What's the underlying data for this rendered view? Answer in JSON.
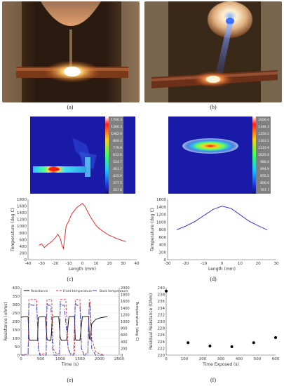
{
  "captions": {
    "a": "(a)",
    "b": "(b)",
    "c": "(c)",
    "d": "(d)",
    "e": "(e)",
    "f": "(f)"
  },
  "thermal_c_scale": [
    "1700.3",
    "1300.3",
    "1062.9",
    "869.2",
    "779.9",
    "612.6",
    "524.7",
    "461.7",
    "415.0",
    "377.5",
    "357.6"
  ],
  "thermal_d_scale": [
    "1600.0",
    "1344.3",
    "1250.2",
    "1163.1",
    "1110.9",
    "1025.0",
    "980.4",
    "894.9",
    "855.5",
    "800.0",
    "767.7"
  ],
  "chart_data": [
    {
      "id": "c",
      "type": "line",
      "xlabel": "Length (mm)",
      "ylabel": "Temperature (deg C)",
      "xlim": [
        -40,
        40
      ],
      "ylim": [
        0,
        1800
      ],
      "xticks": [
        -40,
        -30,
        -20,
        -10,
        0,
        10,
        20,
        30,
        40
      ],
      "yticks": [
        0,
        200,
        400,
        600,
        800,
        1000,
        1200,
        1400,
        1600,
        1800
      ],
      "color": "#e02020",
      "x": [
        -32,
        -30,
        -28,
        -26,
        -24,
        -22,
        -20,
        -18,
        -16,
        -15,
        -14,
        -13,
        -12,
        -10,
        -8,
        -6,
        -4,
        -2,
        0,
        2,
        4,
        6,
        8,
        10,
        12,
        14,
        16,
        18,
        20,
        22,
        24,
        26,
        28,
        30,
        32
      ],
      "y": [
        430,
        470,
        360,
        440,
        500,
        560,
        650,
        760,
        600,
        420,
        330,
        650,
        1000,
        1150,
        1350,
        1460,
        1560,
        1620,
        1680,
        1580,
        1420,
        1270,
        1150,
        1020,
        940,
        880,
        820,
        770,
        720,
        690,
        650,
        620,
        590,
        560,
        540
      ]
    },
    {
      "id": "d",
      "type": "line",
      "xlabel": "Length (mm)",
      "ylabel": "Temperature (deg C)",
      "xlim": [
        -30,
        30
      ],
      "ylim": [
        0,
        1600
      ],
      "xticks": [
        -30,
        -20,
        -10,
        0,
        10,
        20,
        30
      ],
      "yticks": [
        0,
        200,
        400,
        600,
        800,
        1000,
        1200,
        1400,
        1600
      ],
      "color": "#2020d0",
      "x": [
        -25,
        -20,
        -15,
        -10,
        -5,
        0,
        5,
        10,
        15,
        20,
        25
      ],
      "y": [
        790,
        890,
        1010,
        1170,
        1330,
        1420,
        1360,
        1190,
        1020,
        900,
        790
      ]
    },
    {
      "id": "e",
      "type": "line",
      "xlabel": "Time (s)",
      "ylabel": "Resistance (ohms)",
      "ylabel_right": "Temperature (deg C)",
      "xlim": [
        0,
        2500
      ],
      "ylim": [
        0,
        400
      ],
      "ylim_right": [
        0,
        2000
      ],
      "xticks": [
        0,
        500,
        1000,
        1500,
        2000,
        2500
      ],
      "yticks": [
        0,
        50,
        100,
        150,
        200,
        250,
        300,
        350,
        400
      ],
      "yticks_right": [
        0,
        200,
        400,
        600,
        800,
        1000,
        1200,
        1400,
        1600,
        1800,
        2000
      ],
      "legend": [
        "Resistance",
        "Front temperature",
        "Back temperature"
      ],
      "series": [
        {
          "name": "Resistance",
          "color": "#000000",
          "dash": "",
          "x": [
            0,
            100,
            180,
            200,
            220,
            300,
            380,
            420,
            440,
            460,
            500,
            560,
            620,
            660,
            690,
            720,
            760,
            800,
            880,
            960,
            1000,
            1030,
            1060,
            1100,
            1160,
            1220,
            1300,
            1360,
            1380,
            1400,
            1440,
            1500,
            1560,
            1620,
            1680,
            1720,
            1740,
            1760,
            1800,
            1900,
            2000,
            2100,
            2200
          ],
          "y": [
            225,
            228,
            228,
            100,
            88,
            88,
            88,
            88,
            220,
            225,
            228,
            228,
            228,
            95,
            88,
            88,
            88,
            225,
            228,
            228,
            100,
            88,
            88,
            88,
            88,
            228,
            228,
            230,
            100,
            88,
            88,
            88,
            228,
            228,
            230,
            230,
            100,
            92,
            185,
            212,
            220,
            225,
            228
          ]
        },
        {
          "name": "Front temperature",
          "color": "#e03030",
          "dash": "3,2",
          "x": [
            0,
            100,
            180,
            200,
            220,
            300,
            380,
            400,
            440,
            480,
            520,
            560,
            640,
            660,
            690,
            720,
            760,
            780,
            820,
            900,
            980,
            1000,
            1030,
            1060,
            1100,
            1140,
            1200,
            1260,
            1340,
            1360,
            1380,
            1420,
            1460,
            1500,
            1540,
            1600,
            1700,
            1740,
            1760,
            1800,
            1900,
            2000,
            2100
          ],
          "y": [
            0,
            20,
            40,
            1650,
            1650,
            1650,
            1650,
            1650,
            200,
            40,
            20,
            40,
            40,
            1650,
            1650,
            1650,
            1650,
            1650,
            200,
            40,
            40,
            1650,
            1650,
            1650,
            1650,
            1650,
            200,
            40,
            40,
            40,
            1650,
            1650,
            1650,
            1650,
            200,
            40,
            40,
            1650,
            1600,
            500,
            100,
            40,
            20
          ]
        },
        {
          "name": "Back temperature",
          "color": "#3040c0",
          "dash": "6,2,1,2",
          "x": [
            0,
            180,
            200,
            220,
            300,
            400,
            440,
            480,
            560,
            640,
            660,
            690,
            760,
            800,
            840,
            900,
            980,
            1000,
            1030,
            1100,
            1200,
            1260,
            1340,
            1380,
            1420,
            1500,
            1540,
            1600,
            1700,
            1740,
            1760,
            1800,
            1900,
            2100
          ],
          "y": [
            0,
            0,
            1550,
            1500,
            1480,
            1480,
            200,
            0,
            0,
            0,
            1550,
            1480,
            1480,
            200,
            0,
            0,
            0,
            1550,
            1480,
            1480,
            200,
            0,
            0,
            1550,
            1480,
            1480,
            200,
            0,
            0,
            1550,
            1480,
            200,
            0,
            0
          ]
        }
      ]
    },
    {
      "id": "f",
      "type": "scatter",
      "xlabel": "Time Exposed (s)",
      "ylabel": "Residual Resistance (Ohm)",
      "xlim": [
        0,
        600
      ],
      "ylim": [
        220,
        240
      ],
      "xticks": [
        0,
        100,
        200,
        300,
        400,
        500,
        600
      ],
      "yticks": [
        220,
        222,
        224,
        226,
        228,
        230,
        232,
        234,
        236,
        238,
        240
      ],
      "color": "#000000",
      "x": [
        0,
        120,
        240,
        360,
        480,
        600
      ],
      "y": [
        239,
        223.7,
        222.7,
        222.5,
        223.7,
        225.2
      ]
    }
  ]
}
